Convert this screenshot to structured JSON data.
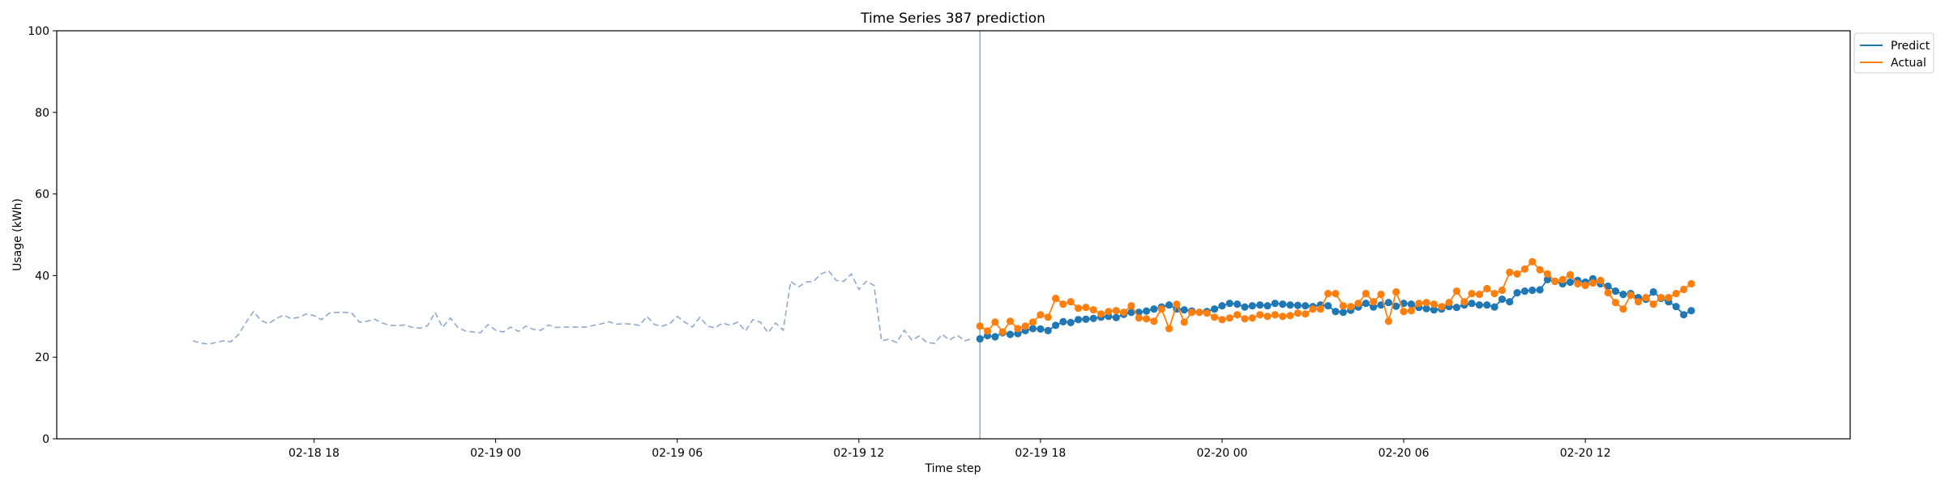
{
  "chart_data": {
    "type": "line",
    "title": "Time Series 387 prediction",
    "xlabel": "Time step",
    "ylabel": "Usage (kWh)",
    "ylim": [
      0,
      100
    ],
    "yticks": [
      0,
      20,
      40,
      60,
      80,
      100
    ],
    "xlim": [
      "2019-02-18 09:30",
      "2019-02-20 20:45"
    ],
    "xticks": [
      {
        "t": "2019-02-18 18:00",
        "label": "02-18 18"
      },
      {
        "t": "2019-02-19 00:00",
        "label": "02-19 00"
      },
      {
        "t": "2019-02-19 06:00",
        "label": "02-19 06"
      },
      {
        "t": "2019-02-19 12:00",
        "label": "02-19 12"
      },
      {
        "t": "2019-02-19 18:00",
        "label": "02-19 18"
      },
      {
        "t": "2019-02-20 00:00",
        "label": "02-20 00"
      },
      {
        "t": "2019-02-20 06:00",
        "label": "02-20 06"
      },
      {
        "t": "2019-02-20 12:00",
        "label": "02-20 12"
      }
    ],
    "grid": false,
    "legend_position": "top-right, outside plot",
    "forecast_start": "2019-02-19 16:00",
    "series": [
      {
        "role": "history",
        "color": "#8fa9cf",
        "style": "dashed",
        "start": "2019-02-18 14:00",
        "step_minutes": 15,
        "values": [
          24.0,
          23.5,
          23.2,
          23.6,
          24.0,
          23.8,
          25.5,
          28.5,
          31.2,
          29.0,
          28.2,
          29.5,
          30.3,
          29.4,
          29.8,
          30.6,
          30.2,
          29.2,
          30.8,
          31.0,
          31.0,
          30.8,
          28.6,
          28.8,
          29.3,
          28.4,
          27.8,
          27.8,
          27.9,
          27.3,
          27.1,
          27.7,
          31.0,
          27.3,
          29.6,
          27.3,
          26.4,
          26.2,
          26.0,
          28.0,
          26.6,
          26.2,
          27.4,
          26.3,
          27.6,
          26.8,
          26.6,
          27.9,
          27.3,
          27.4,
          27.4,
          27.4,
          27.4,
          27.8,
          28.2,
          28.7,
          28.1,
          28.2,
          28.1,
          27.8,
          30.0,
          28.0,
          27.6,
          28.2,
          30.0,
          28.6,
          27.4,
          29.8,
          27.6,
          27.2,
          28.4,
          27.8,
          28.6,
          26.4,
          29.2,
          28.6,
          26.0,
          28.4,
          26.6,
          38.6,
          37.2,
          38.4,
          38.6,
          40.4,
          41.2,
          38.8,
          38.6,
          40.4,
          36.6,
          38.6,
          37.6,
          24.0,
          24.4,
          23.6,
          26.6,
          24.2,
          25.2,
          23.6,
          23.4,
          25.6,
          24.2,
          25.4,
          24.0,
          24.6
        ]
      },
      {
        "name": "Predict",
        "color": "#1f77b4",
        "start": "2019-02-19 16:00",
        "step_minutes": 15,
        "values": [
          24.5,
          25.3,
          25.0,
          26.0,
          25.6,
          25.8,
          26.5,
          27.0,
          26.9,
          26.5,
          27.8,
          28.7,
          28.5,
          29.2,
          29.3,
          29.5,
          29.8,
          30.0,
          29.7,
          30.5,
          31.0,
          31.0,
          31.3,
          31.8,
          32.3,
          32.8,
          31.8,
          31.6,
          31.3,
          31.0,
          31.2,
          31.8,
          32.6,
          33.2,
          33.0,
          32.3,
          32.6,
          32.8,
          32.6,
          33.2,
          33.0,
          32.8,
          32.7,
          32.6,
          32.4,
          32.8,
          32.6,
          31.2,
          31.0,
          31.5,
          32.3,
          33.2,
          32.3,
          32.8,
          33.4,
          32.5,
          33.2,
          33.0,
          32.2,
          31.9,
          31.6,
          31.8,
          32.4,
          32.2,
          32.8,
          33.2,
          32.8,
          32.8,
          32.3,
          34.2,
          33.6,
          35.8,
          36.2,
          36.4,
          36.5,
          39.0,
          38.6,
          38.0,
          38.4,
          38.8,
          38.4,
          39.2,
          38.0,
          37.4,
          36.2,
          35.4,
          35.6,
          34.6,
          34.2,
          36.0,
          34.4,
          33.6,
          32.4,
          30.4,
          31.4
        ]
      },
      {
        "name": "Actual",
        "color": "#ff7f0e",
        "start": "2019-02-19 16:00",
        "step_minutes": 15,
        "values": [
          27.6,
          26.4,
          28.6,
          26.2,
          28.8,
          27.0,
          27.6,
          28.6,
          30.4,
          29.8,
          34.4,
          33.0,
          33.6,
          32.0,
          32.2,
          31.6,
          30.6,
          31.2,
          31.4,
          31.0,
          32.6,
          29.6,
          29.4,
          28.8,
          31.8,
          27.0,
          33.0,
          28.6,
          31.0,
          31.0,
          30.8,
          29.8,
          29.2,
          29.6,
          30.4,
          29.4,
          29.6,
          30.4,
          30.0,
          30.4,
          30.0,
          30.2,
          30.8,
          30.6,
          31.8,
          31.8,
          35.6,
          35.6,
          32.6,
          32.4,
          33.2,
          35.6,
          33.6,
          35.4,
          28.8,
          36.0,
          31.2,
          31.4,
          33.2,
          33.4,
          33.0,
          32.4,
          33.4,
          36.2,
          33.6,
          35.6,
          35.4,
          36.8,
          35.6,
          36.4,
          40.8,
          40.4,
          41.6,
          43.4,
          41.4,
          40.4,
          38.6,
          39.0,
          40.2,
          38.0,
          37.6,
          38.2,
          38.8,
          35.8,
          33.4,
          31.8,
          35.2,
          33.6,
          34.6,
          33.0,
          34.6,
          34.6,
          35.6,
          36.6,
          38.0
        ]
      }
    ]
  }
}
